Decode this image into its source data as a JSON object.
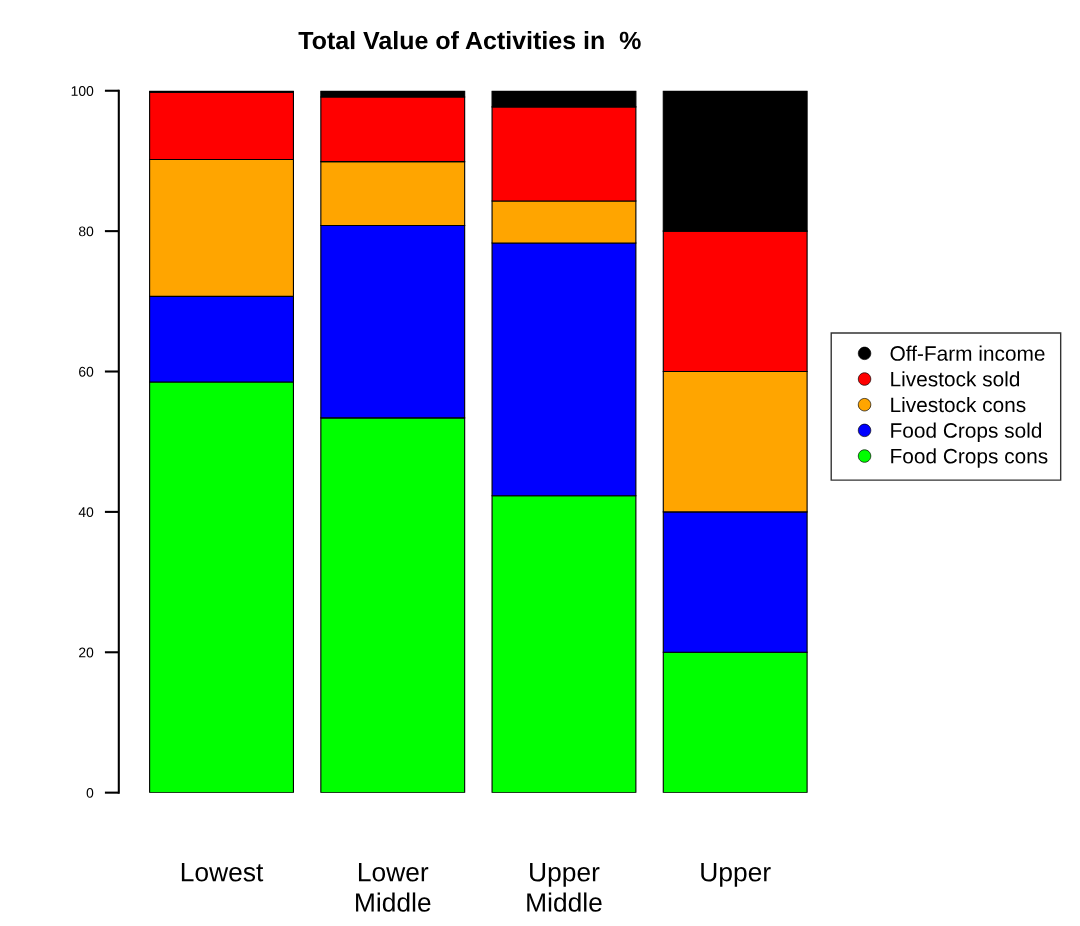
{
  "chart_data": {
    "type": "bar",
    "title": "Total Value of Activities in  %",
    "categories": [
      "Lowest",
      "Lower\nMiddle",
      "Upper\nMiddle",
      "Upper"
    ],
    "stacked": true,
    "ylim": [
      0,
      100
    ],
    "yticks": [
      0,
      20,
      40,
      60,
      80,
      100
    ],
    "grid": false,
    "legend": "right",
    "marker": "circle",
    "series": [
      {
        "name": "Food Crops cons",
        "color": "#00ff00",
        "values": [
          58.5,
          53.4,
          42.3,
          20
        ]
      },
      {
        "name": "Food Crops sold",
        "color": "#0000ff",
        "values": [
          12.2,
          27.4,
          36.0,
          20
        ]
      },
      {
        "name": "Livestock cons",
        "color": "#ffa500",
        "values": [
          19.5,
          9.1,
          6.0,
          20
        ]
      },
      {
        "name": "Livestock sold",
        "color": "#ff0000",
        "values": [
          9.6,
          9.2,
          13.4,
          20
        ]
      },
      {
        "name": "Off-Farm income",
        "color": "#000000",
        "values": [
          0.2,
          0.9,
          2.3,
          20
        ]
      }
    ]
  }
}
